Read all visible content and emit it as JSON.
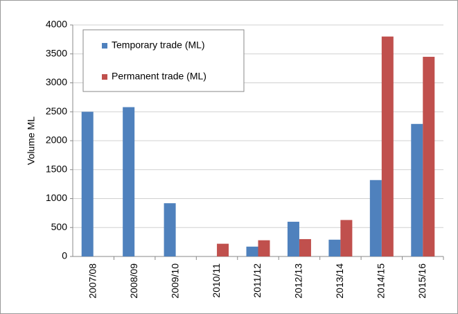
{
  "chart_data": {
    "type": "bar",
    "y_label": "Volume ML",
    "categories": [
      "2007/08",
      "2008/09",
      "2009/10",
      "2010/11",
      "2011/12",
      "2012/13",
      "2013/14",
      "2014/15",
      "2015/16"
    ],
    "series": [
      {
        "name": "Temporary trade (ML)",
        "color": "#4f81bd",
        "values": [
          2500,
          2580,
          920,
          0,
          170,
          600,
          290,
          1320,
          2290
        ]
      },
      {
        "name": "Permanent trade (ML)",
        "color": "#c0504d",
        "values": [
          0,
          0,
          0,
          220,
          280,
          300,
          630,
          3800,
          3450
        ]
      }
    ],
    "ylim": [
      0,
      4000
    ],
    "yticks": [
      0,
      500,
      1000,
      1500,
      2000,
      2500,
      3000,
      3500,
      4000
    ],
    "grid": true
  }
}
